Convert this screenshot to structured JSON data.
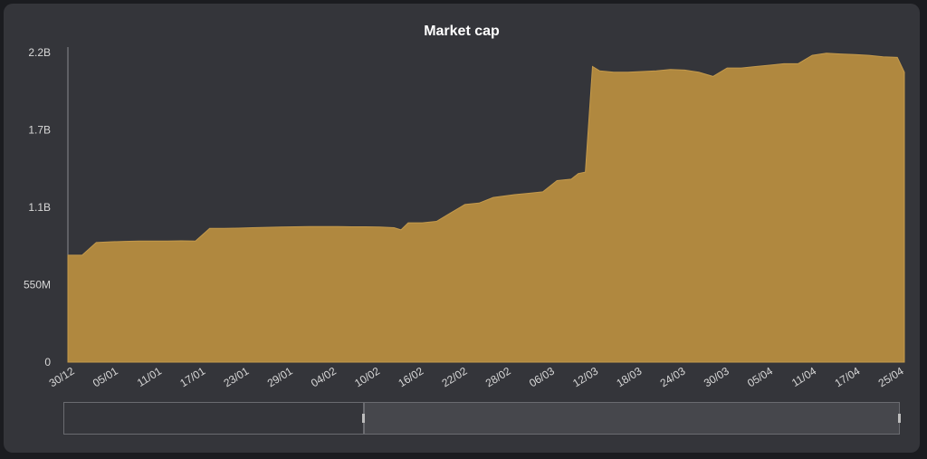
{
  "chart_data": {
    "type": "area",
    "title": "Market cap",
    "xlabel": "",
    "ylabel": "",
    "x_tick_labels": [
      "30/12",
      "05/01",
      "11/01",
      "17/01",
      "23/01",
      "29/01",
      "04/02",
      "10/02",
      "16/02",
      "22/02",
      "28/02",
      "06/03",
      "12/03",
      "18/03",
      "24/03",
      "30/03",
      "05/04",
      "11/04",
      "17/04",
      "25/04"
    ],
    "y_tick_labels": [
      "0",
      "550M",
      "1.1B",
      "1.7B",
      "2.2B"
    ],
    "y_tick_values": [
      0,
      550000000,
      1100000000,
      1650000000,
      2200000000
    ],
    "ylim": [
      0,
      2200000000
    ],
    "area_color": "#b0883f",
    "series": [
      {
        "x": [
          "30/12",
          "01/01",
          "03/01",
          "05/01",
          "07/01",
          "09/01",
          "11/01",
          "13/01",
          "15/01",
          "17/01",
          "19/01",
          "21/01",
          "23/01",
          "25/01",
          "27/01",
          "29/01",
          "31/01",
          "02/02",
          "04/02",
          "06/02",
          "08/02",
          "10/02",
          "12/02",
          "14/02",
          "15/02",
          "16/02",
          "18/02",
          "20/02",
          "22/02",
          "24/02",
          "26/02",
          "28/02",
          "02/03",
          "04/03",
          "06/03",
          "08/03",
          "10/03",
          "11/03",
          "12/03",
          "13/03",
          "14/03",
          "16/03",
          "18/03",
          "20/03",
          "22/03",
          "24/03",
          "26/03",
          "28/03",
          "30/03",
          "01/04",
          "03/04",
          "05/04",
          "07/04",
          "09/04",
          "11/04",
          "13/04",
          "15/04",
          "17/04",
          "19/04",
          "21/04",
          "23/04",
          "25/04",
          "26/04"
        ],
        "values": [
          760000000,
          760000000,
          850000000,
          855000000,
          858000000,
          860000000,
          860000000,
          860000000,
          862000000,
          860000000,
          950000000,
          950000000,
          952000000,
          955000000,
          958000000,
          960000000,
          962000000,
          963000000,
          963000000,
          963000000,
          962000000,
          962000000,
          960000000,
          955000000,
          940000000,
          990000000,
          990000000,
          1000000000,
          1060000000,
          1120000000,
          1130000000,
          1170000000,
          1190000000,
          1200000000,
          1210000000,
          1290000000,
          1300000000,
          1340000000,
          1350000000,
          2100000000,
          2070000000,
          2060000000,
          2060000000,
          2065000000,
          2070000000,
          2080000000,
          2075000000,
          2060000000,
          2030000000,
          2090000000,
          2090000000,
          2100000000,
          2110000000,
          2120000000,
          2120000000,
          2180000000,
          2195000000,
          2190000000,
          2185000000,
          2180000000,
          2170000000,
          2165000000,
          2060000000
        ]
      }
    ]
  }
}
